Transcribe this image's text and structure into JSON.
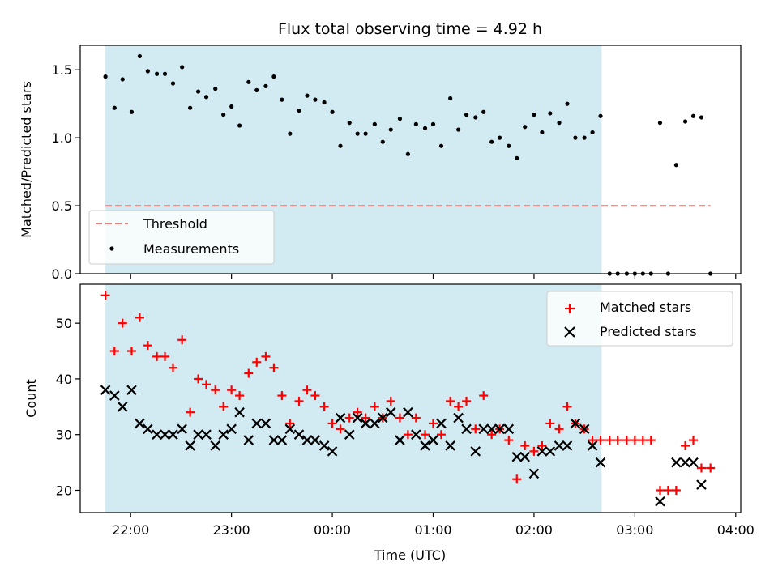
{
  "chart_data": [
    {
      "type": "scatter",
      "title": "Flux total observing time = 4.92 h",
      "xlabel": "",
      "ylabel": "Matched/Predicted stars",
      "x_unit": "hours since 00:00 UTC",
      "xlim": [
        -2.5,
        4.05
      ],
      "ylim": [
        0,
        1.68
      ],
      "yticks": [
        0.0,
        0.5,
        1.0,
        1.5
      ],
      "ytick_labels": [
        "0.0",
        "0.5",
        "1.0",
        "1.5"
      ],
      "shaded_span": {
        "x": [
          -2.25,
          2.67
        ],
        "color": "#add8e6"
      },
      "threshold": {
        "name": "Threshold",
        "value": 0.5,
        "x": [
          -2.25,
          3.75
        ],
        "color": "#f08080"
      },
      "legend_position": "lower-left",
      "series": [
        {
          "name": "Measurements",
          "marker": "dot",
          "color": "#000000",
          "x": [
            -2.25,
            -2.16,
            -2.08,
            -1.99,
            -1.91,
            -1.83,
            -1.74,
            -1.66,
            -1.58,
            -1.49,
            -1.41,
            -1.33,
            -1.25,
            -1.16,
            -1.08,
            -1.0,
            -0.92,
            -0.83,
            -0.75,
            -0.66,
            -0.58,
            -0.5,
            -0.42,
            -0.33,
            -0.25,
            -0.17,
            -0.08,
            0.0,
            0.08,
            0.17,
            0.25,
            0.33,
            0.42,
            0.5,
            0.58,
            0.67,
            0.75,
            0.83,
            0.92,
            1.0,
            1.08,
            1.17,
            1.25,
            1.33,
            1.42,
            1.5,
            1.58,
            1.66,
            1.75,
            1.83,
            1.91,
            2.0,
            2.08,
            2.16,
            2.25,
            2.33,
            2.41,
            2.5,
            2.58,
            2.66,
            2.75,
            2.83,
            2.92,
            3.0,
            3.08,
            3.16,
            3.25,
            3.33,
            3.41,
            3.5,
            3.58,
            3.66,
            3.75
          ],
          "y": [
            1.45,
            1.22,
            1.43,
            1.19,
            1.6,
            1.49,
            1.47,
            1.47,
            1.4,
            1.52,
            1.22,
            1.34,
            1.3,
            1.36,
            1.17,
            1.23,
            1.09,
            1.41,
            1.35,
            1.38,
            1.45,
            1.28,
            1.03,
            1.2,
            1.31,
            1.28,
            1.26,
            1.19,
            0.94,
            1.11,
            1.03,
            1.03,
            1.1,
            0.97,
            1.06,
            1.14,
            0.88,
            1.1,
            1.07,
            1.1,
            0.94,
            1.29,
            1.06,
            1.17,
            1.15,
            1.19,
            0.97,
            1.0,
            0.94,
            0.85,
            1.08,
            1.17,
            1.04,
            1.18,
            1.11,
            1.25,
            1.0,
            1.0,
            1.04,
            1.16,
            0.0,
            0.0,
            0.0,
            0.0,
            0.0,
            0.0,
            1.11,
            0.0,
            0.8,
            1.12,
            1.16,
            1.15,
            0.0
          ]
        }
      ],
      "legend": [
        "Threshold",
        "Measurements"
      ]
    },
    {
      "type": "scatter",
      "xlabel": "Time (UTC)",
      "ylabel": "Count",
      "x_unit": "hours since 00:00 UTC",
      "xlim": [
        -2.5,
        4.05
      ],
      "ylim": [
        16,
        57
      ],
      "xticks": [
        -2,
        -1,
        0,
        1,
        2,
        3,
        4
      ],
      "xtick_labels": [
        "22:00",
        "23:00",
        "00:00",
        "01:00",
        "02:00",
        "03:00",
        "04:00"
      ],
      "yticks": [
        20,
        30,
        40,
        50
      ],
      "ytick_labels": [
        "20",
        "30",
        "40",
        "50"
      ],
      "shaded_span": {
        "x": [
          -2.25,
          2.67
        ],
        "color": "#add8e6"
      },
      "legend_position": "upper-right",
      "series": [
        {
          "name": "Matched stars",
          "marker": "plus",
          "color": "#ff0000",
          "x": [
            -2.25,
            -2.16,
            -2.08,
            -1.99,
            -1.91,
            -1.83,
            -1.74,
            -1.66,
            -1.58,
            -1.49,
            -1.41,
            -1.33,
            -1.25,
            -1.16,
            -1.08,
            -1.0,
            -0.92,
            -0.83,
            -0.75,
            -0.66,
            -0.58,
            -0.5,
            -0.42,
            -0.33,
            -0.25,
            -0.17,
            -0.08,
            0.0,
            0.08,
            0.17,
            0.25,
            0.33,
            0.42,
            0.5,
            0.58,
            0.67,
            0.75,
            0.83,
            0.92,
            1.0,
            1.08,
            1.17,
            1.25,
            1.33,
            1.42,
            1.5,
            1.58,
            1.66,
            1.75,
            1.83,
            1.91,
            2.0,
            2.08,
            2.16,
            2.25,
            2.33,
            2.41,
            2.5,
            2.58,
            2.66,
            2.75,
            2.83,
            2.92,
            3.0,
            3.08,
            3.16,
            3.25,
            3.33,
            3.41,
            3.5,
            3.58,
            3.66,
            3.75
          ],
          "y": [
            55,
            45,
            50,
            45,
            51,
            46,
            44,
            44,
            42,
            47,
            34,
            40,
            39,
            38,
            35,
            38,
            37,
            41,
            43,
            44,
            42,
            37,
            32,
            36,
            38,
            37,
            35,
            32,
            31,
            33,
            34,
            33,
            35,
            33,
            36,
            33,
            30,
            33,
            30,
            32,
            30,
            36,
            35,
            36,
            31,
            37,
            30,
            31,
            29,
            22,
            28,
            27,
            28,
            32,
            31,
            35,
            32,
            31,
            29,
            29,
            29,
            29,
            29,
            29,
            29,
            29,
            20,
            20,
            20,
            28,
            29,
            24,
            24
          ]
        },
        {
          "name": "Predicted stars",
          "marker": "x",
          "color": "#000000",
          "x": [
            -2.25,
            -2.16,
            -2.08,
            -1.99,
            -1.91,
            -1.83,
            -1.74,
            -1.66,
            -1.58,
            -1.49,
            -1.41,
            -1.33,
            -1.25,
            -1.16,
            -1.08,
            -1.0,
            -0.92,
            -0.83,
            -0.75,
            -0.66,
            -0.58,
            -0.5,
            -0.42,
            -0.33,
            -0.25,
            -0.17,
            -0.08,
            0.0,
            0.08,
            0.17,
            0.25,
            0.33,
            0.42,
            0.5,
            0.58,
            0.67,
            0.75,
            0.83,
            0.92,
            1.0,
            1.08,
            1.17,
            1.25,
            1.33,
            1.42,
            1.5,
            1.58,
            1.66,
            1.75,
            1.83,
            1.91,
            2.0,
            2.08,
            2.16,
            2.25,
            2.33,
            2.41,
            2.5,
            2.58,
            2.66,
            3.25,
            3.41,
            3.5,
            3.58,
            3.66
          ],
          "y": [
            38,
            37,
            35,
            38,
            32,
            31,
            30,
            30,
            30,
            31,
            28,
            30,
            30,
            28,
            30,
            31,
            34,
            29,
            32,
            32,
            29,
            29,
            31,
            30,
            29,
            29,
            28,
            27,
            33,
            30,
            33,
            32,
            32,
            33,
            34,
            29,
            34,
            30,
            28,
            29,
            32,
            28,
            33,
            31,
            27,
            31,
            31,
            31,
            31,
            26,
            26,
            23,
            27,
            27,
            28,
            28,
            32,
            31,
            28,
            25,
            18,
            25,
            25,
            25,
            21
          ]
        }
      ],
      "legend": [
        "Matched stars",
        "Predicted stars"
      ]
    }
  ]
}
